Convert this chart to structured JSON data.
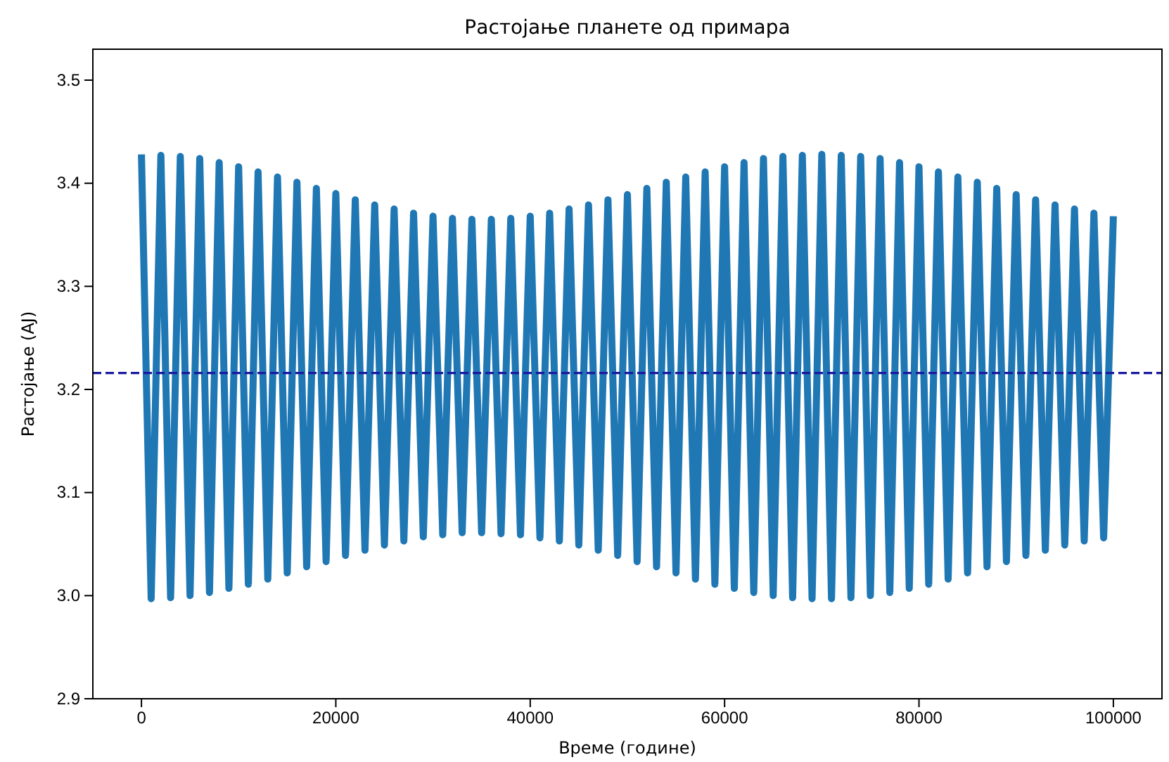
{
  "chart_data": {
    "type": "line",
    "title": "Растојање планете од примара",
    "xlabel": "Време (године)",
    "ylabel": "Растојање (AJ)",
    "x": [
      0,
      1000,
      2000,
      3000,
      4000,
      5000,
      6000,
      7000,
      8000,
      9000,
      10000,
      11000,
      12000,
      13000,
      14000,
      15000,
      16000,
      17000,
      18000,
      19000,
      20000,
      21000,
      22000,
      23000,
      24000,
      25000,
      26000,
      27000,
      28000,
      29000,
      30000,
      31000,
      32000,
      33000,
      34000,
      35000,
      36000,
      37000,
      38000,
      39000,
      40000,
      41000,
      42000,
      43000,
      44000,
      45000,
      46000,
      47000,
      48000,
      49000,
      50000,
      51000,
      52000,
      53000,
      54000,
      55000,
      56000,
      57000,
      58000,
      59000,
      60000,
      61000,
      62000,
      63000,
      64000,
      65000,
      66000,
      67000,
      68000,
      69000,
      70000,
      71000,
      72000,
      73000,
      74000,
      75000,
      76000,
      77000,
      78000,
      79000,
      80000,
      81000,
      82000,
      83000,
      84000,
      85000,
      86000,
      87000,
      88000,
      89000,
      90000,
      91000,
      92000,
      93000,
      94000,
      95000,
      96000,
      97000,
      98000,
      99000,
      100000
    ],
    "series": [
      {
        "color": "#1f77b4",
        "values": [
          3.428,
          2.997,
          3.427,
          2.998,
          3.426,
          3.0,
          3.424,
          3.003,
          3.42,
          3.007,
          3.416,
          3.011,
          3.411,
          3.016,
          3.406,
          3.022,
          3.401,
          3.028,
          3.395,
          3.033,
          3.39,
          3.039,
          3.384,
          3.044,
          3.379,
          3.049,
          3.375,
          3.053,
          3.371,
          3.057,
          3.368,
          3.059,
          3.366,
          3.061,
          3.365,
          3.061,
          3.365,
          3.06,
          3.366,
          3.059,
          3.368,
          3.056,
          3.371,
          3.053,
          3.375,
          3.049,
          3.379,
          3.044,
          3.384,
          3.039,
          3.389,
          3.033,
          3.395,
          3.028,
          3.401,
          3.022,
          3.406,
          3.016,
          3.411,
          3.011,
          3.416,
          3.007,
          3.42,
          3.003,
          3.424,
          3.0,
          3.426,
          2.998,
          3.427,
          2.997,
          3.428,
          2.997,
          3.427,
          2.998,
          3.426,
          3.0,
          3.424,
          3.003,
          3.42,
          3.007,
          3.416,
          3.011,
          3.411,
          3.016,
          3.406,
          3.022,
          3.401,
          3.028,
          3.395,
          3.033,
          3.389,
          3.039,
          3.384,
          3.044,
          3.379,
          3.049,
          3.375,
          3.053,
          3.371,
          3.056,
          3.368
        ]
      }
    ],
    "xlim": [
      -5000,
      105000
    ],
    "ylim": [
      2.9,
      3.53
    ],
    "xticks": [
      0,
      20000,
      40000,
      60000,
      80000,
      100000
    ],
    "yticks": [
      2.9,
      {
        "value": 3,
        "label": "3.0"
      },
      3.1,
      3.2,
      3.3,
      3.4,
      3.5
    ],
    "ref_lines": [
      {
        "axis": "y",
        "value": 3.216,
        "color": "#1a1aa0",
        "line_style": "dashed"
      }
    ]
  }
}
